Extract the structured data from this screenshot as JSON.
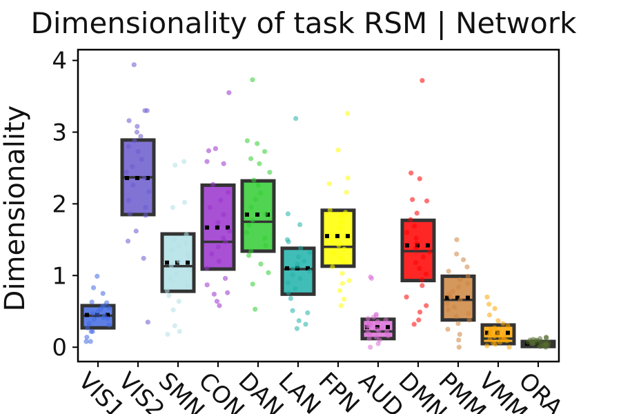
{
  "chart_data": {
    "type": "box",
    "title": "Dimensionality of task RSM | Network",
    "ylabel": "Dimensionality",
    "xlabel": "",
    "ylim": [
      -0.2,
      4.15
    ],
    "yticks": [
      0,
      1,
      2,
      3,
      4
    ],
    "grid": false,
    "legend": "none",
    "categories": [
      "VIS1",
      "VIS2",
      "SMN",
      "CON",
      "DAN",
      "LAN",
      "FPN",
      "AUD",
      "DMN",
      "PMM",
      "VMM",
      "ORA"
    ],
    "colors": [
      "#4169e1",
      "#6a5acd",
      "#b0e0e6",
      "#9932cc",
      "#32cd32",
      "#20b2aa",
      "#ffff00",
      "#da70d6",
      "#ff0000",
      "#cd853f",
      "#ffa500",
      "#556b2f"
    ],
    "boxes": [
      {
        "q1": 0.27,
        "median": 0.44,
        "q3": 0.58,
        "mean": 0.45
      },
      {
        "q1": 1.85,
        "median": 2.37,
        "q3": 2.89,
        "mean": 2.36
      },
      {
        "q1": 0.78,
        "median": 1.13,
        "q3": 1.58,
        "mean": 1.18
      },
      {
        "q1": 1.09,
        "median": 1.47,
        "q3": 2.26,
        "mean": 1.67
      },
      {
        "q1": 1.34,
        "median": 1.75,
        "q3": 2.32,
        "mean": 1.85
      },
      {
        "q1": 0.74,
        "median": 1.09,
        "q3": 1.38,
        "mean": 1.1
      },
      {
        "q1": 1.13,
        "median": 1.4,
        "q3": 1.91,
        "mean": 1.55
      },
      {
        "q1": 0.12,
        "median": 0.22,
        "q3": 0.39,
        "mean": 0.28
      },
      {
        "q1": 0.93,
        "median": 1.34,
        "q3": 1.77,
        "mean": 1.42
      },
      {
        "q1": 0.38,
        "median": 0.66,
        "q3": 0.99,
        "mean": 0.69
      },
      {
        "q1": 0.05,
        "median": 0.12,
        "q3": 0.31,
        "mean": 0.2
      },
      {
        "q1": 0.01,
        "median": 0.04,
        "q3": 0.08,
        "mean": 0.05
      }
    ],
    "points": [
      [
        0.08,
        0.08,
        0.14,
        0.22,
        0.22,
        0.27,
        0.31,
        0.33,
        0.39,
        0.4,
        0.41,
        0.44,
        0.45,
        0.47,
        0.5,
        0.53,
        0.55,
        0.57,
        0.58,
        0.62,
        0.63,
        0.75,
        0.83,
        0.99
      ],
      [
        0.35,
        1.24,
        1.48,
        1.62,
        1.84,
        1.86,
        1.95,
        2.05,
        2.17,
        2.26,
        2.36,
        2.44,
        2.52,
        2.62,
        2.73,
        2.8,
        2.88,
        2.94,
        3.0,
        3.08,
        3.16,
        3.3,
        3.3,
        3.94
      ],
      [
        0.18,
        0.22,
        0.3,
        0.52,
        0.64,
        0.72,
        0.79,
        0.86,
        0.95,
        1.02,
        1.08,
        1.14,
        1.2,
        1.26,
        1.31,
        1.36,
        1.41,
        1.45,
        1.5,
        1.57,
        1.95,
        2.02,
        2.54,
        2.59
      ],
      [
        0.58,
        0.64,
        0.74,
        0.76,
        0.87,
        0.96,
        1.1,
        1.2,
        1.3,
        1.4,
        1.47,
        1.52,
        1.62,
        1.74,
        1.85,
        1.95,
        2.05,
        2.16,
        2.27,
        2.56,
        2.59,
        2.74,
        2.77,
        3.55
      ],
      [
        0.53,
        0.88,
        1.04,
        1.16,
        1.28,
        1.34,
        1.42,
        1.52,
        1.6,
        1.7,
        1.77,
        1.86,
        1.95,
        2.06,
        2.15,
        2.26,
        2.33,
        2.44,
        2.56,
        2.63,
        2.73,
        2.84,
        2.88,
        3.73
      ],
      [
        0.26,
        0.32,
        0.37,
        0.48,
        0.51,
        0.68,
        0.76,
        0.82,
        0.9,
        0.96,
        1.01,
        1.06,
        1.1,
        1.13,
        1.16,
        1.2,
        1.26,
        1.32,
        1.38,
        1.47,
        1.5,
        1.71,
        1.86,
        3.19
      ],
      [
        0.58,
        0.67,
        0.79,
        0.89,
        0.93,
        1.03,
        1.12,
        1.19,
        1.25,
        1.31,
        1.37,
        1.42,
        1.49,
        1.57,
        1.66,
        1.74,
        1.83,
        1.88,
        1.91,
        2.16,
        2.28,
        2.36,
        2.75,
        3.26
      ],
      [
        0.0,
        0.05,
        0.1,
        0.12,
        0.14,
        0.16,
        0.18,
        0.2,
        0.21,
        0.23,
        0.25,
        0.27,
        0.29,
        0.3,
        0.32,
        0.34,
        0.36,
        0.38,
        0.4,
        0.42,
        0.44,
        0.46,
        0.96,
        0.98
      ],
      [
        0.32,
        0.38,
        0.49,
        0.58,
        0.7,
        0.86,
        0.94,
        1.02,
        1.1,
        1.18,
        1.26,
        1.33,
        1.38,
        1.45,
        1.52,
        1.6,
        1.69,
        1.78,
        1.87,
        2.04,
        2.06,
        2.35,
        2.43,
        3.72
      ],
      [
        0.0,
        0.1,
        0.18,
        0.25,
        0.33,
        0.38,
        0.43,
        0.47,
        0.52,
        0.56,
        0.61,
        0.66,
        0.7,
        0.74,
        0.78,
        0.84,
        0.89,
        0.94,
        0.99,
        1.06,
        1.12,
        1.22,
        1.3,
        1.5
      ],
      [
        0.0,
        0.02,
        0.04,
        0.06,
        0.07,
        0.09,
        0.1,
        0.11,
        0.12,
        0.14,
        0.15,
        0.17,
        0.18,
        0.2,
        0.22,
        0.24,
        0.27,
        0.3,
        0.33,
        0.37,
        0.45,
        0.54,
        0.6,
        0.7
      ],
      [
        0.0,
        0.01,
        0.02,
        0.02,
        0.03,
        0.03,
        0.04,
        0.04,
        0.05,
        0.05,
        0.05,
        0.06,
        0.06,
        0.07,
        0.07,
        0.08,
        0.08,
        0.09,
        0.1,
        0.1,
        0.11,
        0.12,
        0.13,
        0.14
      ]
    ]
  }
}
